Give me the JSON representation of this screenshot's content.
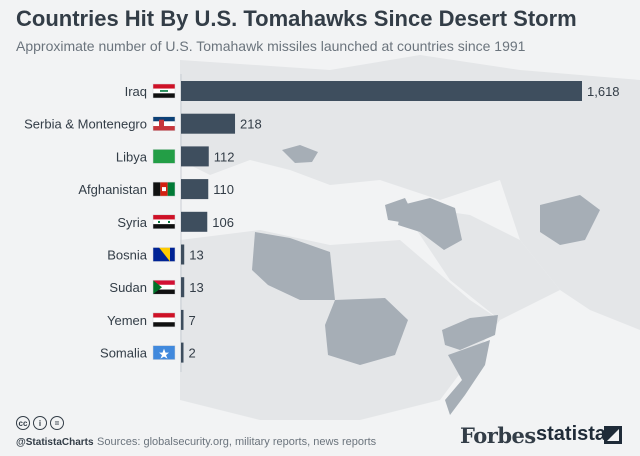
{
  "colors": {
    "bar": "#3e4e5e",
    "map_land": "#e4e6e8",
    "highlight_land": "#a6aeb6",
    "title": "#333d47",
    "subtitle": "#6b747d"
  },
  "title": "Countries Hit By U.S. Tomahawks Since Desert Storm",
  "subtitle": "Approximate number of U.S. Tomahawk missiles launched at countries since 1991",
  "chart_data": {
    "type": "bar",
    "orientation": "horizontal",
    "title": "Countries Hit By U.S. Tomahawks Since Desert Storm",
    "subtitle": "Approximate number of U.S. Tomahawk missiles launched at countries since 1991",
    "categories": [
      "Iraq",
      "Serbia & Montenegro",
      "Libya",
      "Afghanistan",
      "Syria",
      "Bosnia",
      "Sudan",
      "Yemen",
      "Somalia"
    ],
    "values": [
      1618,
      218,
      112,
      110,
      106,
      13,
      13,
      7,
      2
    ],
    "value_labels": [
      "1,618",
      "218",
      "112",
      "110",
      "106",
      "13",
      "13",
      "7",
      "2"
    ],
    "flags": [
      "iraq-flag-icon",
      "serbia-montenegro-flag-icon",
      "libya-flag-icon",
      "afghanistan-flag-icon",
      "syria-flag-icon",
      "bosnia-flag-icon",
      "sudan-flag-icon",
      "yemen-flag-icon",
      "somalia-flag-icon"
    ],
    "xlim": [
      0,
      1618
    ],
    "grid": false,
    "legend": "none"
  },
  "footer": {
    "cc_icons": [
      "cc-icon",
      "attribution-icon",
      "equals-icon"
    ],
    "handle": "@StatistaCharts",
    "source": "Sources: globalsecurity.org, military reports, news reports",
    "forbes": "Forbes",
    "statista": "statista"
  }
}
